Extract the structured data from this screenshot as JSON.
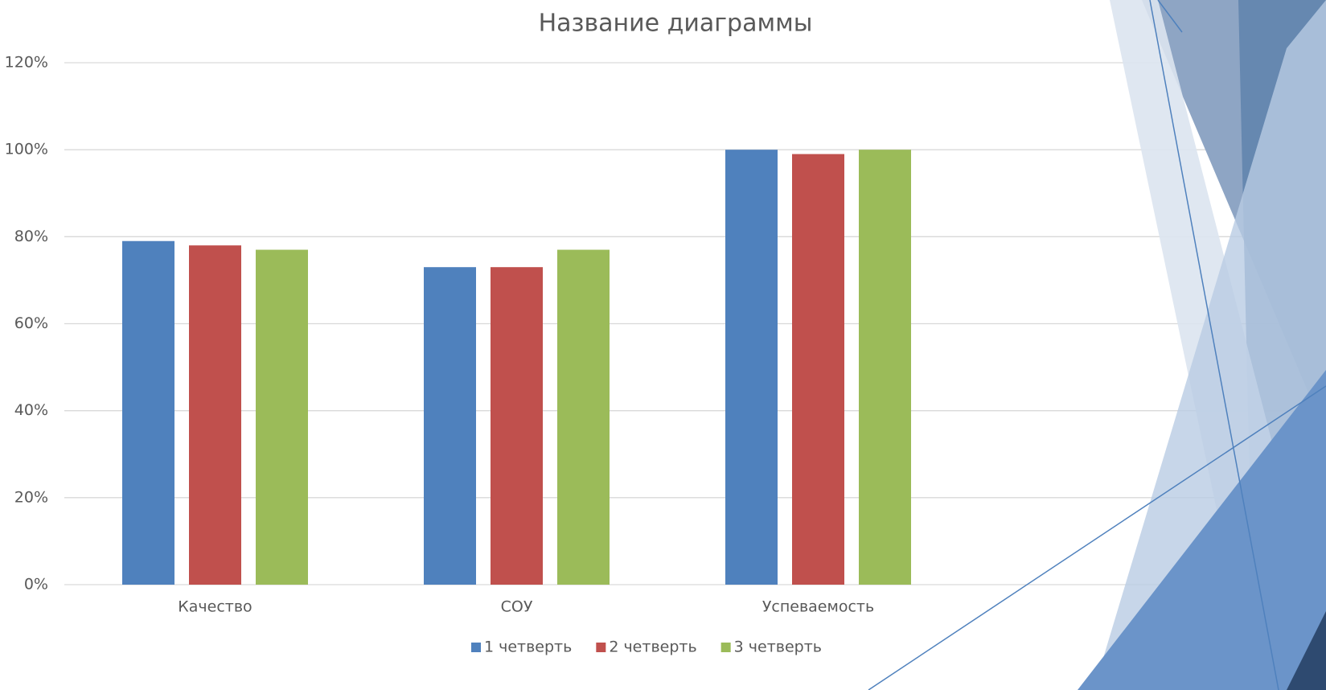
{
  "chart_data": {
    "type": "bar",
    "title": "Название диаграммы",
    "categories": [
      "Качество",
      "СОУ",
      "Успеваемость"
    ],
    "series": [
      {
        "name": "1 четверть",
        "color": "#4f81bd",
        "values": [
          79,
          73,
          100
        ]
      },
      {
        "name": "2 четверть",
        "color": "#c0504d",
        "values": [
          78,
          73,
          99
        ]
      },
      {
        "name": "3 четверть",
        "color": "#9bbb59",
        "values": [
          77,
          77,
          100
        ]
      }
    ],
    "ylim": [
      0,
      120
    ],
    "yticks": [
      {
        "value": 0,
        "label": "0%"
      },
      {
        "value": 20,
        "label": "20%"
      },
      {
        "value": 40,
        "label": "40%"
      },
      {
        "value": 60,
        "label": "60%"
      },
      {
        "value": 80,
        "label": "80%"
      },
      {
        "value": 100,
        "label": "100%"
      },
      {
        "value": 120,
        "label": "120%"
      }
    ],
    "grid": true,
    "legend": "bottom"
  }
}
